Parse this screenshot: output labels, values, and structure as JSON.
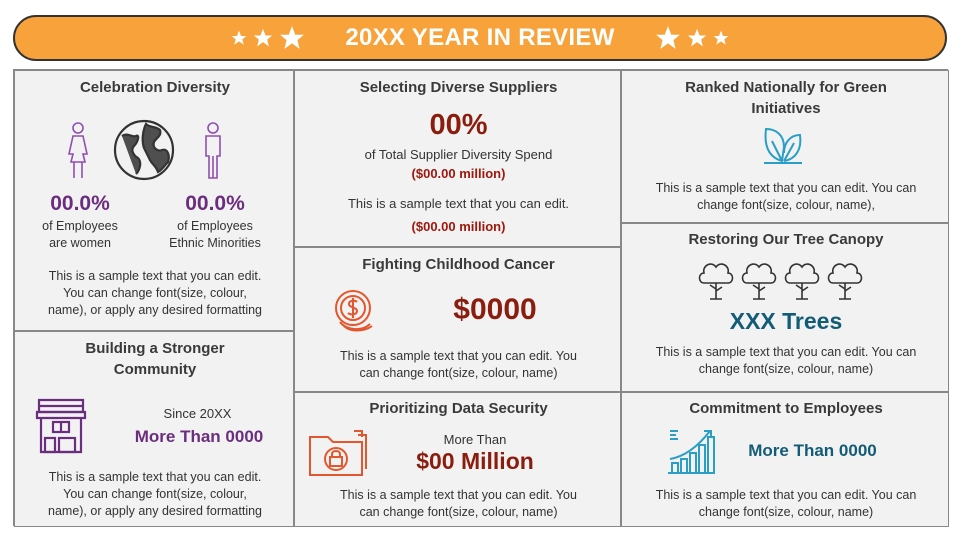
{
  "header": {
    "title": "20XX YEAR IN REVIEW"
  },
  "colors": {
    "banner": "#f7a23b",
    "purple": "#6b2d7e",
    "red": "#8b1d0f",
    "teal": "#135c75",
    "icon_orange": "#e4572e",
    "icon_teal": "#2a9ec4"
  },
  "celebration": {
    "title": "Celebration Diversity",
    "women_value": "00.0%",
    "women_label1": "of Employees",
    "women_label2": "are women",
    "ethnic_value": "00.0%",
    "ethnic_label1": "of Employees",
    "ethnic_label2": "Ethnic Minorities",
    "text1": "This is a sample text that you can edit.",
    "text2": "You can change font(size, colour,",
    "text3": "name), or apply any desired formatting"
  },
  "community": {
    "title1": "Building a Stronger",
    "title2": "Community",
    "since": "Since 20XX",
    "value": "More Than 0000",
    "text1": "This is a sample text that you can edit.",
    "text2": "You can change font(size, colour,",
    "text3": "name), or apply any desired formatting"
  },
  "suppliers": {
    "title": "Selecting Diverse Suppliers",
    "value": "00%",
    "label": "of Total Supplier Diversity Spend",
    "amount1": "($00.00 million)",
    "text": "This is a sample text that you can edit.",
    "amount2": "($00.00 million)"
  },
  "cancer": {
    "title": "Fighting Childhood Cancer",
    "value": "$0000",
    "text1": "This is a sample text that you can edit. You",
    "text2": "can change font(size, colour, name)"
  },
  "security": {
    "title": "Prioritizing Data Security",
    "more_than": "More Than",
    "value": "$00 Million",
    "text1": "This is a sample text that you can edit. You",
    "text2": "can change font(size, colour, name)"
  },
  "green": {
    "title1": "Ranked Nationally for Green",
    "title2": "Initiatives",
    "text1": "This is a sample text that you can edit. You can",
    "text2": "change font(size, colour, name),"
  },
  "trees": {
    "title": "Restoring Our Tree Canopy",
    "value": "XXX Trees",
    "text1": "This is a sample text that you can edit. You can",
    "text2": "change font(size, colour, name)"
  },
  "employees": {
    "title": "Commitment to Employees",
    "value": "More Than 0000",
    "text1": "This is a sample text that you can edit. You can",
    "text2": "change font(size, colour, name)"
  }
}
